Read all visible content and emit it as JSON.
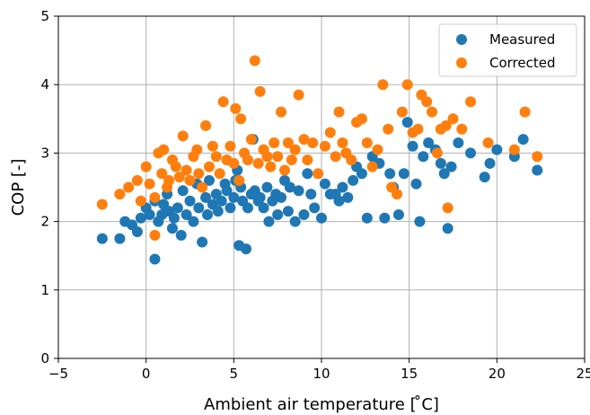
{
  "chart_data": {
    "type": "scatter",
    "xlabel": "Ambient air temperature [$^\\circ$C]",
    "xlabel_display": "Ambient air temperature [ ̊C]",
    "ylabel": "COP [-]",
    "xlim": [
      -5,
      25
    ],
    "ylim": [
      0,
      5
    ],
    "x_ticks": [
      -5,
      0,
      5,
      10,
      15,
      20,
      25
    ],
    "x_tick_labels": [
      "−5",
      "0",
      "5",
      "10",
      "15",
      "20",
      "25"
    ],
    "y_ticks": [
      0,
      1,
      2,
      3,
      4,
      5
    ],
    "y_tick_labels": [
      "0",
      "1",
      "2",
      "3",
      "4",
      "5"
    ],
    "grid": true,
    "legend_position": "top-right",
    "series": [
      {
        "name": "Measured",
        "color": "#1f77b4",
        "points": [
          [
            -2.5,
            1.75
          ],
          [
            -1.5,
            1.75
          ],
          [
            -1.2,
            2.0
          ],
          [
            -0.8,
            1.95
          ],
          [
            -0.5,
            1.85
          ],
          [
            -0.3,
            2.05
          ],
          [
            0.0,
            2.2
          ],
          [
            0.2,
            2.1
          ],
          [
            0.5,
            2.3
          ],
          [
            0.5,
            1.45
          ],
          [
            0.7,
            2.0
          ],
          [
            0.9,
            2.1
          ],
          [
            1.0,
            2.25
          ],
          [
            1.2,
            2.4
          ],
          [
            1.3,
            2.15
          ],
          [
            1.5,
            1.9
          ],
          [
            1.6,
            2.05
          ],
          [
            1.8,
            2.2
          ],
          [
            2.0,
            1.8
          ],
          [
            2.1,
            2.45
          ],
          [
            2.3,
            2.1
          ],
          [
            2.5,
            2.3
          ],
          [
            2.7,
            2.0
          ],
          [
            2.9,
            2.55
          ],
          [
            3.0,
            2.2
          ],
          [
            3.2,
            1.7
          ],
          [
            3.4,
            2.35
          ],
          [
            3.5,
            2.1
          ],
          [
            3.6,
            2.6
          ],
          [
            3.8,
            2.25
          ],
          [
            4.0,
            2.4
          ],
          [
            4.1,
            2.15
          ],
          [
            4.3,
            2.3
          ],
          [
            4.5,
            2.55
          ],
          [
            4.6,
            2.45
          ],
          [
            4.8,
            2.2
          ],
          [
            5.0,
            2.35
          ],
          [
            5.1,
            2.6
          ],
          [
            5.2,
            2.75
          ],
          [
            5.3,
            1.65
          ],
          [
            5.4,
            2.5
          ],
          [
            5.5,
            2.3
          ],
          [
            5.7,
            1.6
          ],
          [
            5.8,
            2.2
          ],
          [
            6.0,
            2.4
          ],
          [
            6.1,
            3.2
          ],
          [
            6.2,
            2.45
          ],
          [
            6.4,
            2.3
          ],
          [
            6.5,
            2.35
          ],
          [
            6.7,
            2.2
          ],
          [
            6.9,
            2.5
          ],
          [
            7.0,
            2.0
          ],
          [
            7.2,
            2.3
          ],
          [
            7.4,
            2.4
          ],
          [
            7.5,
            2.1
          ],
          [
            7.7,
            2.35
          ],
          [
            7.9,
            2.6
          ],
          [
            8.1,
            2.15
          ],
          [
            8.2,
            2.5
          ],
          [
            8.5,
            2.0
          ],
          [
            8.7,
            2.45
          ],
          [
            9.0,
            2.1
          ],
          [
            9.2,
            2.7
          ],
          [
            9.4,
            2.4
          ],
          [
            9.6,
            2.2
          ],
          [
            10.0,
            2.05
          ],
          [
            10.2,
            2.55
          ],
          [
            10.5,
            2.4
          ],
          [
            10.8,
            2.4
          ],
          [
            11.0,
            2.3
          ],
          [
            11.2,
            2.5
          ],
          [
            11.5,
            2.35
          ],
          [
            11.8,
            2.6
          ],
          [
            12.0,
            2.8
          ],
          [
            12.3,
            2.7
          ],
          [
            12.6,
            2.05
          ],
          [
            12.9,
            2.95
          ],
          [
            13.3,
            2.85
          ],
          [
            13.6,
            2.05
          ],
          [
            13.9,
            2.7
          ],
          [
            14.1,
            2.5
          ],
          [
            14.4,
            2.1
          ],
          [
            14.7,
            2.7
          ],
          [
            14.9,
            3.45
          ],
          [
            15.2,
            3.1
          ],
          [
            15.4,
            2.55
          ],
          [
            15.6,
            2.0
          ],
          [
            15.8,
            2.95
          ],
          [
            16.1,
            3.15
          ],
          [
            16.5,
            3.05
          ],
          [
            16.8,
            2.85
          ],
          [
            17.0,
            2.7
          ],
          [
            17.2,
            1.9
          ],
          [
            17.4,
            2.8
          ],
          [
            17.8,
            3.15
          ],
          [
            18.5,
            3.0
          ],
          [
            19.3,
            2.65
          ],
          [
            19.6,
            2.85
          ],
          [
            20.0,
            3.05
          ],
          [
            21.0,
            2.95
          ],
          [
            21.5,
            3.2
          ],
          [
            22.3,
            2.75
          ]
        ]
      },
      {
        "name": "Corrected",
        "color": "#ff7f0e",
        "points": [
          [
            -2.5,
            2.25
          ],
          [
            -1.5,
            2.4
          ],
          [
            -1.0,
            2.5
          ],
          [
            -0.5,
            2.6
          ],
          [
            -0.3,
            2.3
          ],
          [
            0.0,
            2.8
          ],
          [
            0.2,
            2.55
          ],
          [
            0.5,
            2.35
          ],
          [
            0.5,
            1.8
          ],
          [
            0.7,
            3.0
          ],
          [
            0.9,
            2.7
          ],
          [
            1.0,
            3.05
          ],
          [
            1.2,
            2.5
          ],
          [
            1.3,
            2.6
          ],
          [
            1.5,
            2.9
          ],
          [
            1.7,
            2.8
          ],
          [
            1.9,
            2.65
          ],
          [
            2.1,
            3.25
          ],
          [
            2.3,
            2.75
          ],
          [
            2.5,
            2.6
          ],
          [
            2.7,
            2.95
          ],
          [
            2.9,
            3.05
          ],
          [
            3.0,
            2.7
          ],
          [
            3.2,
            2.5
          ],
          [
            3.4,
            3.4
          ],
          [
            3.6,
            2.8
          ],
          [
            3.8,
            3.1
          ],
          [
            4.0,
            2.95
          ],
          [
            4.2,
            2.7
          ],
          [
            4.4,
            3.75
          ],
          [
            4.6,
            2.9
          ],
          [
            4.8,
            3.1
          ],
          [
            5.0,
            2.85
          ],
          [
            5.1,
            3.65
          ],
          [
            5.3,
            2.6
          ],
          [
            5.4,
            3.5
          ],
          [
            5.6,
            3.0
          ],
          [
            5.8,
            2.9
          ],
          [
            6.0,
            3.2
          ],
          [
            6.2,
            4.35
          ],
          [
            6.4,
            2.85
          ],
          [
            6.5,
            3.9
          ],
          [
            6.7,
            3.05
          ],
          [
            6.9,
            2.95
          ],
          [
            7.1,
            2.8
          ],
          [
            7.3,
            3.15
          ],
          [
            7.5,
            2.95
          ],
          [
            7.7,
            3.6
          ],
          [
            7.9,
            2.75
          ],
          [
            8.1,
            3.15
          ],
          [
            8.3,
            2.9
          ],
          [
            8.5,
            3.05
          ],
          [
            8.7,
            3.85
          ],
          [
            9.0,
            3.2
          ],
          [
            9.2,
            2.9
          ],
          [
            9.5,
            3.15
          ],
          [
            9.8,
            2.7
          ],
          [
            10.2,
            3.1
          ],
          [
            10.5,
            3.3
          ],
          [
            10.8,
            2.95
          ],
          [
            11.0,
            3.6
          ],
          [
            11.2,
            3.15
          ],
          [
            11.4,
            3.0
          ],
          [
            11.7,
            2.9
          ],
          [
            12.0,
            3.45
          ],
          [
            12.3,
            3.5
          ],
          [
            12.6,
            3.15
          ],
          [
            12.9,
            2.8
          ],
          [
            13.2,
            3.05
          ],
          [
            13.5,
            4.0
          ],
          [
            13.8,
            3.35
          ],
          [
            14.0,
            2.5
          ],
          [
            14.3,
            2.4
          ],
          [
            14.6,
            3.6
          ],
          [
            14.9,
            4.0
          ],
          [
            15.2,
            3.3
          ],
          [
            15.5,
            3.35
          ],
          [
            15.7,
            3.85
          ],
          [
            16.0,
            3.75
          ],
          [
            16.3,
            3.6
          ],
          [
            16.6,
            3.0
          ],
          [
            16.8,
            3.35
          ],
          [
            17.1,
            3.4
          ],
          [
            17.2,
            2.2
          ],
          [
            17.5,
            3.5
          ],
          [
            18.0,
            3.35
          ],
          [
            18.5,
            3.75
          ],
          [
            19.5,
            3.15
          ],
          [
            21.0,
            3.05
          ],
          [
            21.6,
            3.6
          ],
          [
            22.3,
            2.95
          ]
        ]
      }
    ]
  }
}
